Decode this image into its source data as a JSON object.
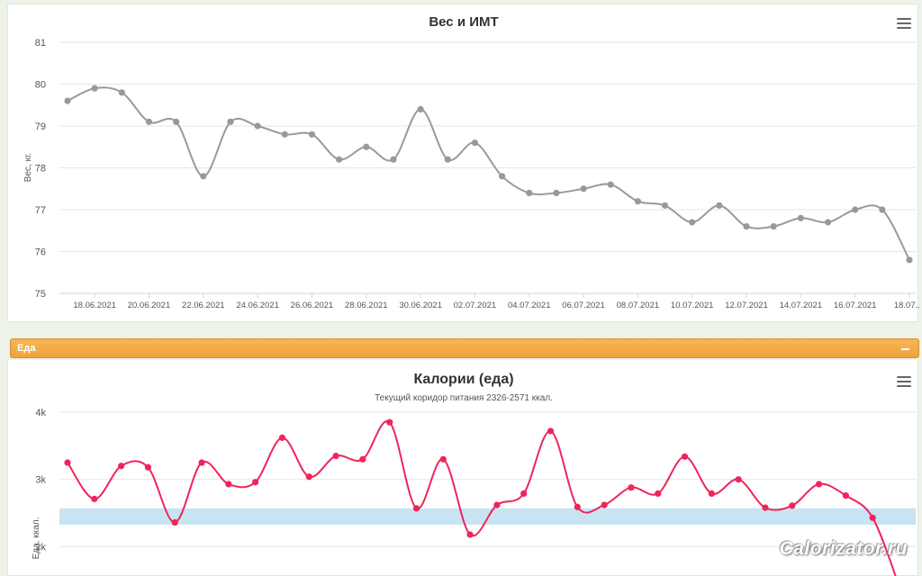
{
  "chart_data": [
    {
      "type": "line",
      "title": "Вес и ИМТ",
      "ylabel": "Вес, кг.",
      "ylim": [
        75,
        81
      ],
      "yticks": [
        "75",
        "76",
        "77",
        "78",
        "79",
        "80",
        "81"
      ],
      "x_tick_labels": [
        "18.06.2021",
        "20.06.2021",
        "22.06.2021",
        "24.06.2021",
        "26.06.2021",
        "28.06.2021",
        "30.06.2021",
        "02.07.2021",
        "04.07.2021",
        "06.07.2021",
        "08.07.2021",
        "10.07.2021",
        "12.07.2021",
        "14.07.2021",
        "16.07.2021",
        "18.07...."
      ],
      "x": [
        "17.06.2021",
        "18.06.2021",
        "19.06.2021",
        "20.06.2021",
        "21.06.2021",
        "22.06.2021",
        "23.06.2021",
        "24.06.2021",
        "25.06.2021",
        "26.06.2021",
        "27.06.2021",
        "28.06.2021",
        "29.06.2021",
        "30.06.2021",
        "01.07.2021",
        "02.07.2021",
        "03.07.2021",
        "04.07.2021",
        "05.07.2021",
        "06.07.2021",
        "07.07.2021",
        "08.07.2021",
        "09.07.2021",
        "10.07.2021",
        "11.07.2021",
        "12.07.2021",
        "13.07.2021",
        "14.07.2021",
        "15.07.2021",
        "16.07.2021",
        "17.07.2021",
        "18.07.2021"
      ],
      "values": [
        79.6,
        79.9,
        79.8,
        79.1,
        79.1,
        77.8,
        79.1,
        79.0,
        78.8,
        78.8,
        78.2,
        78.5,
        78.2,
        79.4,
        78.2,
        78.6,
        77.8,
        77.4,
        77.4,
        77.5,
        77.6,
        77.2,
        77.1,
        76.7,
        77.1,
        76.6,
        76.6,
        76.8,
        76.7,
        77.0,
        77.0,
        75.8
      ],
      "color": "#999999",
      "grid": true,
      "legend": "none"
    },
    {
      "type": "line",
      "title": "Калории (еда)",
      "subtitle": "Текущий коридор питания 2326-2571 ккал.",
      "ylabel": "Еда, ккал.",
      "yticks": [
        "2k",
        "3k",
        "4k"
      ],
      "ylim": [
        1430,
        4000
      ],
      "band": [
        2326,
        2571
      ],
      "band_color": "#c8e4f2",
      "x": [
        "17.06.2021",
        "18.06.2021",
        "19.06.2021",
        "20.06.2021",
        "21.06.2021",
        "22.06.2021",
        "23.06.2021",
        "24.06.2021",
        "25.06.2021",
        "26.06.2021",
        "27.06.2021",
        "28.06.2021",
        "29.06.2021",
        "30.06.2021",
        "01.07.2021",
        "02.07.2021",
        "03.07.2021",
        "04.07.2021",
        "05.07.2021",
        "06.07.2021",
        "07.07.2021",
        "08.07.2021",
        "09.07.2021",
        "10.07.2021",
        "11.07.2021",
        "12.07.2021",
        "13.07.2021",
        "14.07.2021",
        "15.07.2021",
        "16.07.2021",
        "17.07.2021",
        "18.07.2021"
      ],
      "values": [
        3250,
        2710,
        3200,
        3180,
        2360,
        3250,
        2930,
        2960,
        3620,
        3040,
        3350,
        3300,
        3850,
        2570,
        3300,
        2180,
        2620,
        2790,
        3720,
        2590,
        2620,
        2880,
        2790,
        3340,
        2790,
        3000,
        2580,
        2610,
        2930,
        2760,
        2430,
        1400
      ],
      "color": "#f0245a",
      "grid": true,
      "legend": "none"
    }
  ],
  "food_section": {
    "title": "Еда"
  },
  "watermark": "Calorizator.ru"
}
